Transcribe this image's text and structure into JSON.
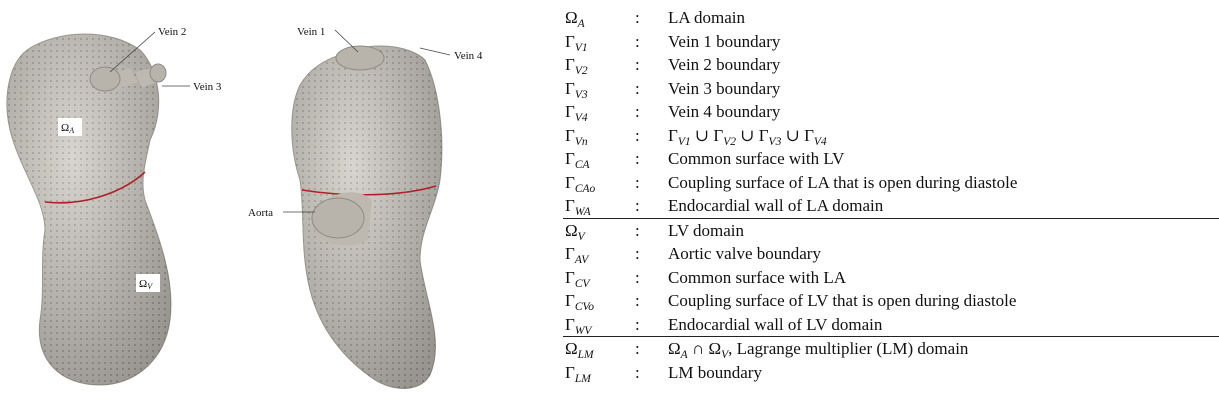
{
  "figure": {
    "labels": {
      "vein2": "Vein 2",
      "vein3": "Vein 3",
      "vein1": "Vein 1",
      "vein4": "Vein 4",
      "aorta": "Aorta",
      "omega_a": {
        "base": "Ω",
        "sub": "A"
      },
      "omega_v": {
        "base": "Ω",
        "sub": "V"
      }
    }
  },
  "table": {
    "separator": ":",
    "groups": [
      {
        "rows": [
          {
            "symbol": {
              "base": "Ω",
              "sub": "A"
            },
            "description": [
              {
                "text": "LA domain"
              }
            ]
          },
          {
            "symbol": {
              "base": "Γ",
              "sub": "V1"
            },
            "description": [
              {
                "text": "Vein 1 boundary"
              }
            ]
          },
          {
            "symbol": {
              "base": "Γ",
              "sub": "V2"
            },
            "description": [
              {
                "text": "Vein 2 boundary"
              }
            ]
          },
          {
            "symbol": {
              "base": "Γ",
              "sub": "V3"
            },
            "description": [
              {
                "text": "Vein 3 boundary"
              }
            ]
          },
          {
            "symbol": {
              "base": "Γ",
              "sub": "V4"
            },
            "description": [
              {
                "text": "Vein 4 boundary"
              }
            ]
          },
          {
            "symbol": {
              "base": "Γ",
              "sub": "Vn"
            },
            "description": [
              {
                "base": "Γ",
                "sub": "V1"
              },
              {
                "text": " ∪ "
              },
              {
                "base": "Γ",
                "sub": "V2"
              },
              {
                "text": " ∪ "
              },
              {
                "base": "Γ",
                "sub": "V3"
              },
              {
                "text": " ∪ "
              },
              {
                "base": "Γ",
                "sub": "V4"
              }
            ]
          },
          {
            "symbol": {
              "base": "Γ",
              "sub": "CA"
            },
            "description": [
              {
                "text": "Common surface with LV"
              }
            ]
          },
          {
            "symbol": {
              "base": "Γ",
              "sub": "CAo"
            },
            "description": [
              {
                "text": "Coupling surface of LA that is open during diastole"
              }
            ]
          },
          {
            "symbol": {
              "base": "Γ",
              "sub": "WA"
            },
            "description": [
              {
                "text": "Endocardial wall of LA domain"
              }
            ]
          }
        ]
      },
      {
        "rows": [
          {
            "symbol": {
              "base": "Ω",
              "sub": "V"
            },
            "description": [
              {
                "text": "LV domain"
              }
            ]
          },
          {
            "symbol": {
              "base": "Γ",
              "sub": "AV"
            },
            "description": [
              {
                "text": "Aortic valve boundary"
              }
            ]
          },
          {
            "symbol": {
              "base": "Γ",
              "sub": "CV"
            },
            "description": [
              {
                "text": "Common surface with LA"
              }
            ]
          },
          {
            "symbol": {
              "base": "Γ",
              "sub": "CVo"
            },
            "description": [
              {
                "text": "Coupling surface of LV that is open during diastole"
              }
            ]
          },
          {
            "symbol": {
              "base": "Γ",
              "sub": "WV"
            },
            "description": [
              {
                "text": "Endocardial wall of LV domain"
              }
            ]
          }
        ]
      },
      {
        "rows": [
          {
            "symbol": {
              "base": "Ω",
              "sub": "LM"
            },
            "description": [
              {
                "base": "Ω",
                "sub": "A"
              },
              {
                "text": " ∩ "
              },
              {
                "base": "Ω",
                "sub": "V"
              },
              {
                "text": ", Lagrange multiplier (LM) domain"
              }
            ]
          },
          {
            "symbol": {
              "base": "Γ",
              "sub": "LM"
            },
            "description": [
              {
                "text": "LM boundary"
              }
            ]
          }
        ]
      }
    ]
  }
}
